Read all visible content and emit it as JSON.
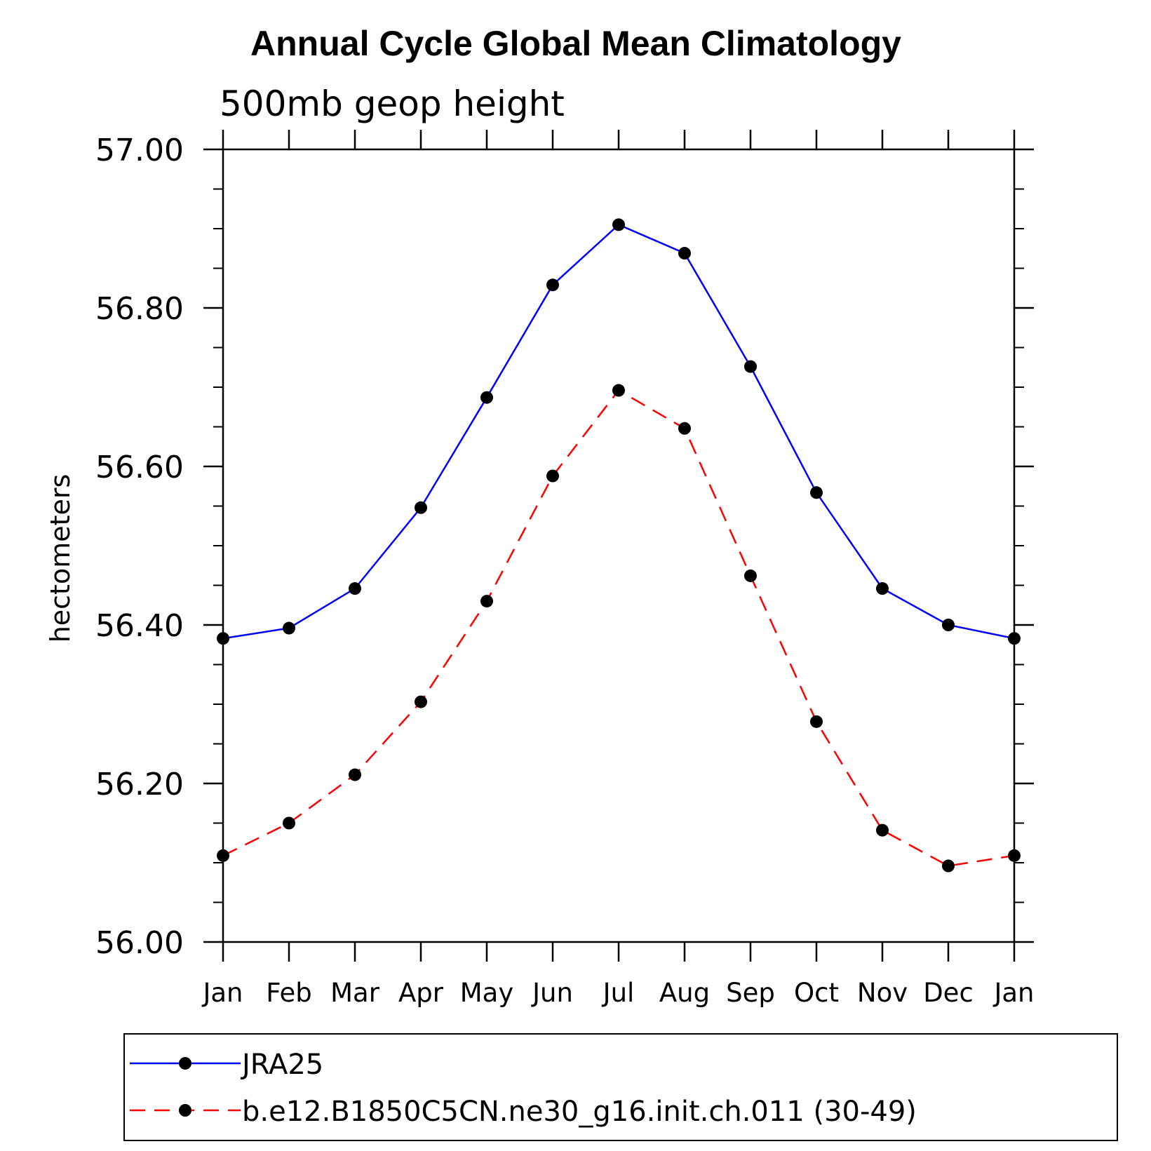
{
  "chart_data": {
    "type": "line",
    "title": "Annual Cycle Global Mean Climatology",
    "subtitle": "500mb geop height",
    "ylabel": "hectometers",
    "xlabel": "",
    "categories": [
      "Jan",
      "Feb",
      "Mar",
      "Apr",
      "May",
      "Jun",
      "Jul",
      "Aug",
      "Sep",
      "Oct",
      "Nov",
      "Dec",
      "Jan"
    ],
    "ylim": [
      56.0,
      57.0
    ],
    "yticks": [
      "56.00",
      "56.20",
      "56.40",
      "56.60",
      "56.80",
      "57.00"
    ],
    "ytick_values": [
      56.0,
      56.2,
      56.4,
      56.6,
      56.8,
      57.0
    ],
    "yminor_step": 0.05,
    "grid": false,
    "legend_position": "bottom",
    "series": [
      {
        "name": "JRA25",
        "color": "#0000ff",
        "line_style": "solid",
        "marker": "filled-circle",
        "values": [
          56.383,
          56.396,
          56.446,
          56.548,
          56.687,
          56.829,
          56.905,
          56.869,
          56.726,
          56.567,
          56.446,
          56.4,
          56.383
        ]
      },
      {
        "name": "b.e12.B1850C5CN.ne30_g16.init.ch.011 (30-49)",
        "color": "#ff0000",
        "line_style": "dashed",
        "marker": "filled-circle",
        "values": [
          56.109,
          56.15,
          56.211,
          56.303,
          56.43,
          56.588,
          56.696,
          56.648,
          56.462,
          56.278,
          56.141,
          56.096,
          56.109
        ]
      }
    ]
  }
}
